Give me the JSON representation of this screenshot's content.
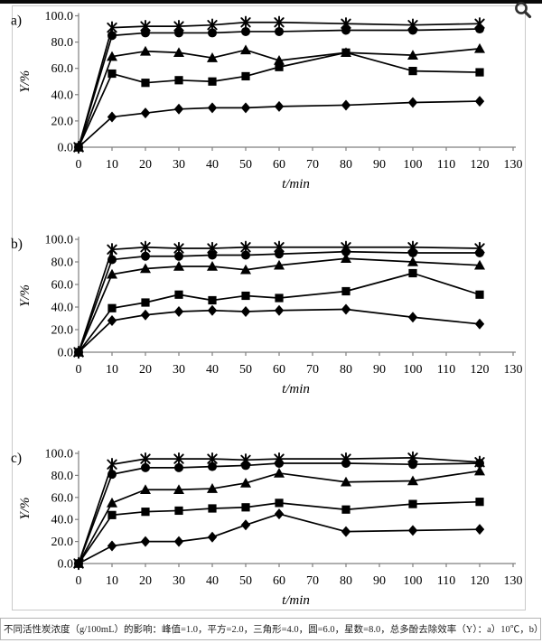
{
  "viewer": {
    "zoom_icon_name": "magnifier-icon",
    "zoom_icon_color": "#2f2f2f"
  },
  "caption": "不同活性炭浓度（g/100mL）的影响：峰值=1.0，平方=2.0，三角形=4.0，圆=6.0，星数=8.0，总多酚去除效率（Y）：a）10℃，b）25℃，c）40℃",
  "chart_data": [
    {
      "type": "line",
      "panel_label": "a)",
      "condition": "10℃",
      "xlabel": "t/min",
      "ylabel": "Y/%",
      "xlim": [
        0,
        130
      ],
      "ylim": [
        0,
        100
      ],
      "grid": false,
      "legend": "none (markers explained in caption)",
      "x_ticks": [
        0,
        10,
        20,
        30,
        40,
        50,
        60,
        70,
        80,
        90,
        100,
        110,
        120,
        130
      ],
      "y_tick_labels": [
        "0.0",
        "20.0",
        "40.0",
        "60.0",
        "80.0",
        "100.0"
      ],
      "x": [
        0,
        10,
        20,
        30,
        40,
        50,
        60,
        80,
        100,
        120
      ],
      "series": [
        {
          "name": "峰值=1.0 g/100mL",
          "marker": "diamond",
          "values": [
            0,
            23,
            26,
            29,
            30,
            30,
            31,
            32,
            34,
            35
          ]
        },
        {
          "name": "平方=2.0 g/100mL",
          "marker": "square",
          "values": [
            0,
            56,
            49,
            51,
            50,
            54,
            61,
            72,
            58,
            57
          ]
        },
        {
          "name": "三角形=4.0 g/100mL",
          "marker": "triangle",
          "values": [
            0,
            69,
            73,
            72,
            68,
            74,
            66,
            72,
            70,
            75
          ]
        },
        {
          "name": "圆=6.0 g/100mL",
          "marker": "circle",
          "values": [
            0,
            85,
            87,
            87,
            87,
            88,
            88,
            89,
            89,
            90
          ]
        },
        {
          "name": "星数=8.0 g/100mL",
          "marker": "star",
          "values": [
            0,
            91,
            92,
            92,
            93,
            95,
            95,
            94,
            93,
            94
          ]
        }
      ]
    },
    {
      "type": "line",
      "panel_label": "b)",
      "condition": "25℃",
      "xlabel": "t/min",
      "ylabel": "Y/%",
      "xlim": [
        0,
        130
      ],
      "ylim": [
        0,
        100
      ],
      "grid": false,
      "legend": "none (markers explained in caption)",
      "x_ticks": [
        0,
        10,
        20,
        30,
        40,
        50,
        60,
        70,
        80,
        90,
        100,
        110,
        120,
        130
      ],
      "y_tick_labels": [
        "0.0",
        "20.0",
        "40.0",
        "60.0",
        "80.0",
        "100.0"
      ],
      "x": [
        0,
        10,
        20,
        30,
        40,
        50,
        60,
        80,
        100,
        120
      ],
      "series": [
        {
          "name": "峰值=1.0 g/100mL",
          "marker": "diamond",
          "values": [
            0,
            28,
            33,
            36,
            37,
            36,
            37,
            38,
            31,
            25
          ]
        },
        {
          "name": "平方=2.0 g/100mL",
          "marker": "square",
          "values": [
            0,
            39,
            44,
            51,
            46,
            50,
            48,
            54,
            70,
            51
          ]
        },
        {
          "name": "三角形=4.0 g/100mL",
          "marker": "triangle",
          "values": [
            0,
            69,
            74,
            76,
            76,
            73,
            77,
            83,
            80,
            77
          ]
        },
        {
          "name": "圆=6.0 g/100mL",
          "marker": "circle",
          "values": [
            0,
            82,
            85,
            85,
            86,
            86,
            87,
            89,
            88,
            88
          ]
        },
        {
          "name": "星数=8.0 g/100mL",
          "marker": "star",
          "values": [
            0,
            91,
            93,
            92,
            92,
            93,
            93,
            93,
            93,
            92
          ]
        }
      ]
    },
    {
      "type": "line",
      "panel_label": "c)",
      "condition": "40℃",
      "xlabel": "t/min",
      "ylabel": "Y/%",
      "xlim": [
        0,
        130
      ],
      "ylim": [
        0,
        100
      ],
      "grid": false,
      "legend": "none (markers explained in caption)",
      "x_ticks": [
        0,
        10,
        20,
        30,
        40,
        50,
        60,
        70,
        80,
        90,
        100,
        110,
        120,
        130
      ],
      "y_tick_labels": [
        "0.0",
        "20.0",
        "40.0",
        "60.0",
        "80.0",
        "100.0"
      ],
      "x": [
        0,
        10,
        20,
        30,
        40,
        50,
        60,
        80,
        100,
        120
      ],
      "series": [
        {
          "name": "峰值=1.0 g/100mL",
          "marker": "diamond",
          "values": [
            0,
            16,
            20,
            20,
            24,
            35,
            45,
            29,
            30,
            31
          ]
        },
        {
          "name": "平方=2.0 g/100mL",
          "marker": "square",
          "values": [
            0,
            44,
            47,
            48,
            50,
            51,
            55,
            49,
            54,
            56
          ]
        },
        {
          "name": "三角形=4.0 g/100mL",
          "marker": "triangle",
          "values": [
            0,
            55,
            67,
            67,
            68,
            73,
            82,
            74,
            75,
            84
          ]
        },
        {
          "name": "圆=6.0 g/100mL",
          "marker": "circle",
          "values": [
            0,
            81,
            87,
            87,
            88,
            89,
            91,
            91,
            90,
            91
          ]
        },
        {
          "name": "星数=8.0 g/100mL",
          "marker": "star",
          "values": [
            0,
            90,
            95,
            95,
            95,
            94,
            95,
            95,
            96,
            92
          ]
        }
      ]
    }
  ],
  "style": {
    "series_color": "#000000",
    "axis_color": "#7f7f7f",
    "box_border_color": "#c9c9c9",
    "caption_border_color": "#b5b5b5",
    "topbar_color": "#0a0a0a"
  }
}
